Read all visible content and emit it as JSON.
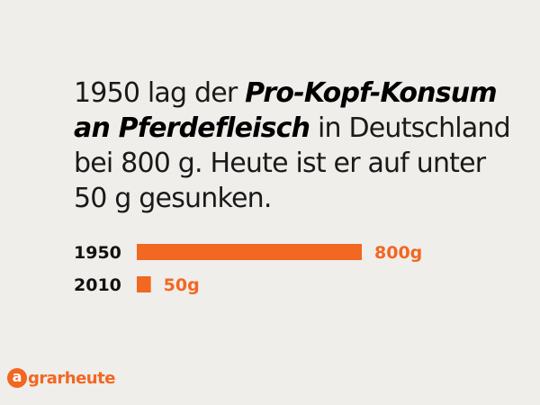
{
  "headline": {
    "part1": "1950 lag der ",
    "emphasis": "Pro-Kopf-Konsum an Pferdefleisch",
    "part2": " in Deutschland bei 800 g. Heute ist er auf unter 50 g gesunken."
  },
  "colors": {
    "accent": "#f26722",
    "background": "#efeeea",
    "text": "#1a1a1a"
  },
  "chart_data": {
    "type": "bar",
    "orientation": "horizontal",
    "categories": [
      "1950",
      "2010"
    ],
    "values": [
      800,
      50
    ],
    "value_labels": [
      "800g",
      "50g"
    ],
    "unit": "g",
    "xlim": [
      0,
      800
    ]
  },
  "logo": {
    "mark": "a",
    "text": "grarheute"
  }
}
